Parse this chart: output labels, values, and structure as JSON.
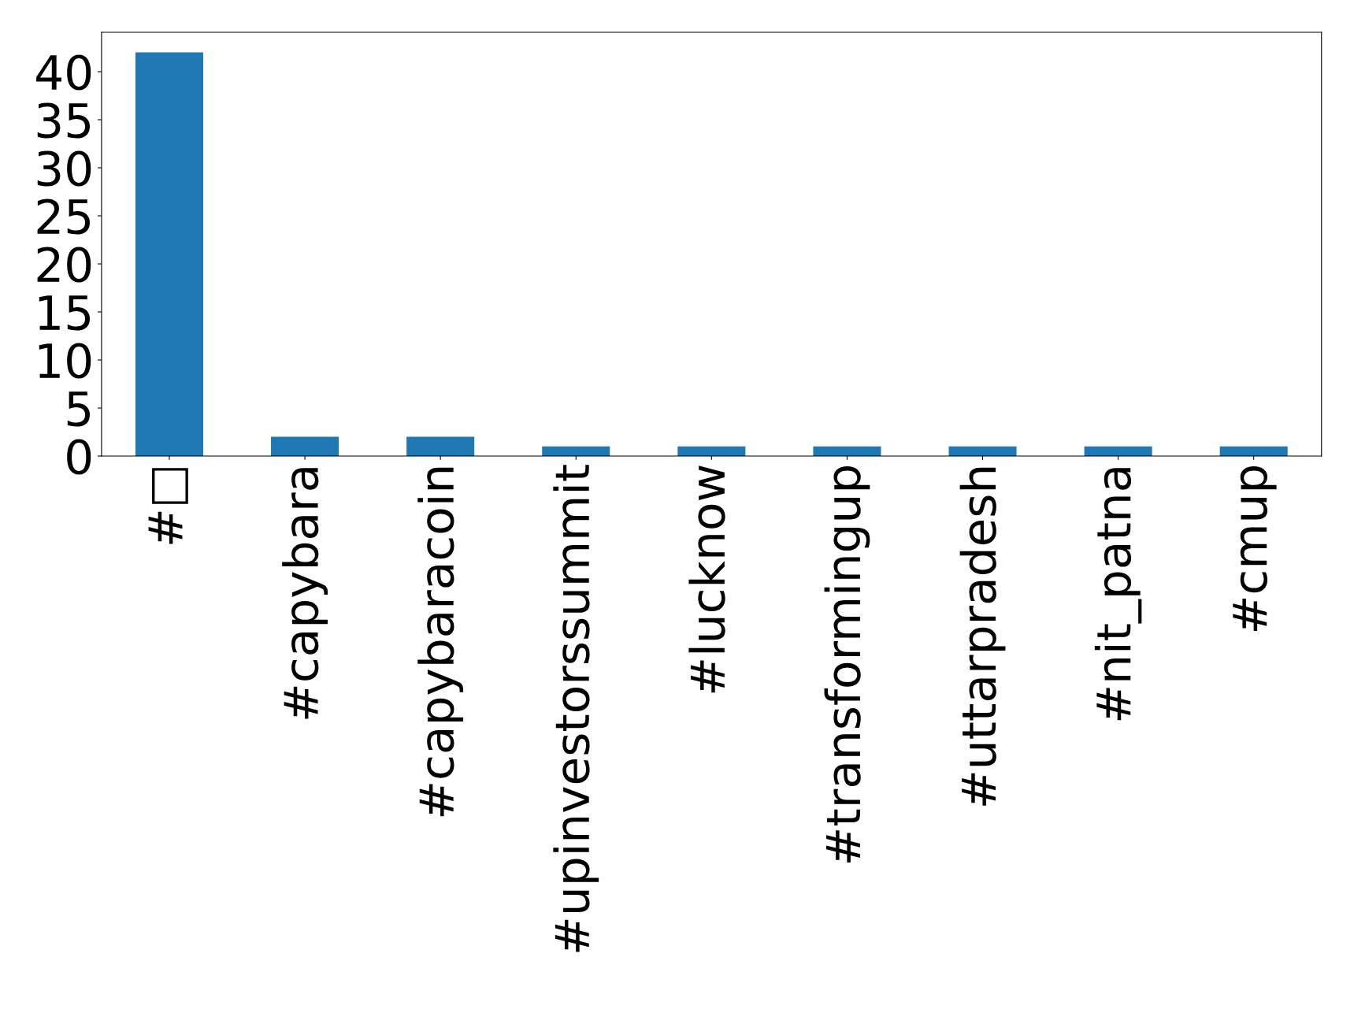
{
  "chart_data": {
    "type": "bar",
    "categories": [
      "#□",
      "#capybara",
      "#capybaracoin",
      "#upinvestorssummit",
      "#lucknow",
      "#transformingup",
      "#uttarpradesh",
      "#nit_patna",
      "#cmup"
    ],
    "values": [
      42,
      2,
      2,
      1,
      1,
      1,
      1,
      1,
      1
    ],
    "color": "#1f77b4",
    "ylim": [
      0,
      44.1
    ],
    "yticks": [
      0,
      5,
      10,
      15,
      20,
      25,
      30,
      35,
      40
    ],
    "grid": false
  }
}
